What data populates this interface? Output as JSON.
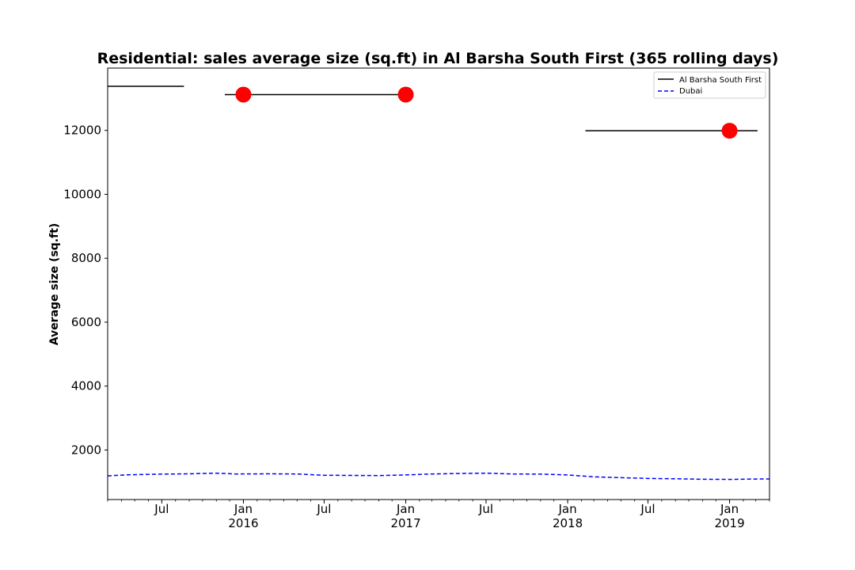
{
  "chart_data": {
    "type": "line",
    "title": "Residential: sales average size (sq.ft) in Al Barsha South First (365 rolling days)",
    "xlabel": "",
    "ylabel": "Average size (sq.ft)",
    "xlim": [
      "2015-03-01",
      "2019-04-01"
    ],
    "ylim": [
      450,
      13950
    ],
    "yticks": [
      2000,
      4000,
      6000,
      8000,
      10000,
      12000
    ],
    "xticks": [
      {
        "date": "2015-07-01",
        "label": "Jul",
        "year": ""
      },
      {
        "date": "2016-01-01",
        "label": "Jan",
        "year": "2016"
      },
      {
        "date": "2016-07-01",
        "label": "Jul",
        "year": ""
      },
      {
        "date": "2017-01-01",
        "label": "Jan",
        "year": "2017"
      },
      {
        "date": "2017-07-01",
        "label": "Jul",
        "year": ""
      },
      {
        "date": "2018-01-01",
        "label": "Jan",
        "year": "2018"
      },
      {
        "date": "2018-07-01",
        "label": "Jul",
        "year": ""
      },
      {
        "date": "2019-01-01",
        "label": "Jan",
        "year": "2019"
      }
    ],
    "legend_position": "top-right",
    "series": [
      {
        "name": "Al Barsha South First",
        "color": "#000000",
        "style": "solid",
        "segments": [
          [
            [
              "2015-03-01",
              13380
            ],
            [
              "2015-08-20",
              13380
            ]
          ],
          [
            [
              "2015-11-20",
              13120
            ],
            [
              "2017-01-05",
              13120
            ]
          ],
          [
            [
              "2018-02-10",
              11990
            ],
            [
              "2019-03-05",
              11990
            ]
          ]
        ]
      },
      {
        "name": "Dubai",
        "color": "#0000ff",
        "style": "dashed",
        "points": [
          [
            "2015-03-01",
            1190
          ],
          [
            "2015-04-15",
            1225
          ],
          [
            "2015-07-01",
            1245
          ],
          [
            "2015-09-01",
            1255
          ],
          [
            "2015-11-01",
            1275
          ],
          [
            "2015-12-15",
            1250
          ],
          [
            "2016-03-01",
            1255
          ],
          [
            "2016-05-01",
            1250
          ],
          [
            "2016-07-01",
            1210
          ],
          [
            "2016-09-01",
            1205
          ],
          [
            "2016-11-01",
            1200
          ],
          [
            "2017-01-01",
            1220
          ],
          [
            "2017-03-01",
            1250
          ],
          [
            "2017-05-01",
            1265
          ],
          [
            "2017-07-01",
            1275
          ],
          [
            "2017-09-01",
            1250
          ],
          [
            "2017-11-01",
            1245
          ],
          [
            "2018-01-01",
            1220
          ],
          [
            "2018-03-01",
            1160
          ],
          [
            "2018-05-01",
            1135
          ],
          [
            "2018-07-01",
            1110
          ],
          [
            "2018-09-01",
            1100
          ],
          [
            "2018-11-01",
            1085
          ],
          [
            "2019-01-01",
            1080
          ],
          [
            "2019-02-15",
            1090
          ],
          [
            "2019-04-01",
            1095
          ]
        ]
      }
    ],
    "markers": [
      {
        "date": "2016-01-01",
        "value": 13120,
        "color": "#ff0000"
      },
      {
        "date": "2017-01-01",
        "value": 13120,
        "color": "#ff0000"
      },
      {
        "date": "2019-01-01",
        "value": 11990,
        "color": "#ff0000"
      }
    ]
  }
}
